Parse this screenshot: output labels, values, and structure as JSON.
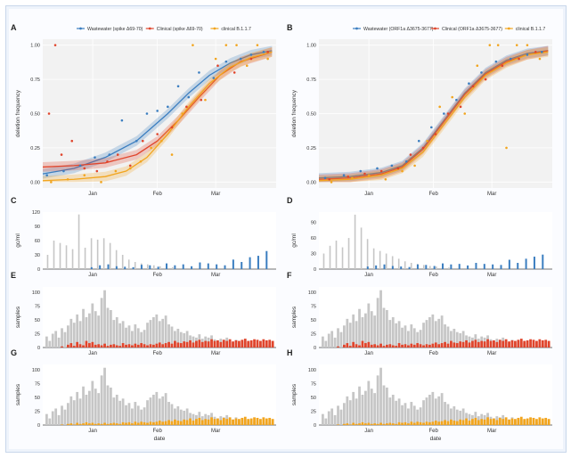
{
  "colors": {
    "wastewater": "#3b7ec0",
    "clinical": "#e0452c",
    "b117": "#f2a51e",
    "gray_bar": "#c6c6c6",
    "panel_bg": "#f2f2f2",
    "grid": "#ffffff"
  },
  "chart_data": [
    {
      "panel": "A",
      "type": "scatter",
      "legend": [
        "Wastewater (spike Δ69-70)",
        "Clinical (spike Δ69-70)",
        "clinical B.1.1.7"
      ],
      "ylabel": "deletion frequency",
      "yticks": [
        "0.00",
        "0.25",
        "0.50",
        "0.75",
        "1.00"
      ],
      "xticks": [
        "Jan",
        "Feb",
        "Mar"
      ],
      "xlim_days": [
        0,
        112
      ],
      "ylim": [
        0,
        1
      ],
      "fits": [
        {
          "series": "Wastewater",
          "x": [
            0,
            15,
            30,
            45,
            60,
            70,
            80,
            90,
            100,
            110
          ],
          "y": [
            0.06,
            0.1,
            0.18,
            0.3,
            0.5,
            0.65,
            0.78,
            0.87,
            0.93,
            0.96
          ]
        },
        {
          "series": "Clinical",
          "x": [
            0,
            15,
            30,
            45,
            55,
            65,
            75,
            85,
            95,
            110
          ],
          "y": [
            0.11,
            0.12,
            0.14,
            0.2,
            0.3,
            0.45,
            0.62,
            0.78,
            0.88,
            0.95
          ]
        },
        {
          "series": "clinical B.1.1.7",
          "x": [
            0,
            15,
            30,
            40,
            50,
            60,
            70,
            80,
            90,
            100,
            110
          ],
          "y": [
            0.01,
            0.02,
            0.04,
            0.08,
            0.18,
            0.35,
            0.55,
            0.72,
            0.84,
            0.91,
            0.95
          ]
        }
      ],
      "points": [
        {
          "series": "Wastewater",
          "x": [
            2,
            10,
            18,
            25,
            32,
            38,
            45,
            50,
            55,
            60,
            65,
            70,
            75,
            82,
            88,
            95,
            100,
            106
          ],
          "y": [
            0.05,
            0.08,
            0.12,
            0.18,
            0.2,
            0.45,
            0.3,
            0.5,
            0.52,
            0.55,
            0.7,
            0.62,
            0.8,
            0.76,
            0.88,
            0.9,
            0.93,
            0.95
          ]
        },
        {
          "series": "Clinical",
          "x": [
            3,
            6,
            9,
            14,
            20,
            26,
            31,
            36,
            42,
            48,
            55,
            62,
            69,
            76,
            84,
            92,
            100,
            108
          ],
          "y": [
            0.5,
            1.0,
            0.2,
            0.3,
            0.1,
            0.08,
            0.15,
            0.2,
            0.12,
            0.3,
            0.35,
            0.4,
            0.55,
            0.6,
            0.85,
            0.8,
            0.9,
            0.95
          ]
        },
        {
          "series": "clinical B.1.1.7",
          "x": [
            4,
            12,
            20,
            28,
            35,
            42,
            47,
            52,
            57,
            62,
            67,
            72,
            78,
            83,
            88,
            93,
            98,
            103,
            108
          ],
          "y": [
            0.0,
            0.02,
            0.05,
            0.0,
            0.08,
            0.1,
            0.15,
            0.25,
            0.3,
            0.2,
            0.5,
            1.0,
            0.6,
            0.9,
            1.0,
            1.0,
            0.85,
            1.0,
            0.9
          ]
        }
      ]
    },
    {
      "panel": "B",
      "type": "scatter",
      "legend": [
        "Wastewater (ORF1a Δ3675-3677)",
        "Clinical (ORF1a Δ3675-3677)",
        "clinical B.1.1.7"
      ],
      "ylabel": "deletion frequency",
      "yticks": [
        "0.00",
        "0.25",
        "0.50",
        "0.75",
        "1.00"
      ],
      "xticks": [
        "Jan",
        "Feb",
        "Mar"
      ],
      "xlim_days": [
        0,
        112
      ],
      "ylim": [
        0,
        1
      ],
      "fits": [
        {
          "series": "Wastewater",
          "x": [
            0,
            15,
            30,
            40,
            50,
            60,
            70,
            80,
            90,
            100,
            110
          ],
          "y": [
            0.03,
            0.04,
            0.07,
            0.12,
            0.25,
            0.45,
            0.65,
            0.8,
            0.89,
            0.94,
            0.96
          ]
        },
        {
          "series": "Clinical",
          "x": [
            0,
            15,
            30,
            40,
            50,
            60,
            70,
            80,
            90,
            100,
            110
          ],
          "y": [
            0.02,
            0.03,
            0.06,
            0.11,
            0.24,
            0.44,
            0.64,
            0.79,
            0.88,
            0.93,
            0.96
          ]
        },
        {
          "series": "clinical B.1.1.7",
          "x": [
            0,
            15,
            30,
            40,
            50,
            60,
            70,
            80,
            90,
            100,
            110
          ],
          "y": [
            0.01,
            0.02,
            0.05,
            0.1,
            0.22,
            0.42,
            0.62,
            0.78,
            0.87,
            0.93,
            0.95
          ]
        }
      ],
      "points": [
        {
          "series": "Wastewater",
          "x": [
            3,
            12,
            20,
            28,
            35,
            42,
            48,
            54,
            60,
            66,
            72,
            78,
            85,
            92,
            100,
            107
          ],
          "y": [
            0.03,
            0.05,
            0.08,
            0.1,
            0.12,
            0.15,
            0.3,
            0.4,
            0.5,
            0.6,
            0.72,
            0.8,
            0.88,
            0.9,
            0.93,
            0.95
          ]
        },
        {
          "series": "Clinical",
          "x": [
            5,
            14,
            22,
            30,
            38,
            44,
            50,
            56,
            62,
            68,
            74,
            80,
            88,
            96,
            104
          ],
          "y": [
            0.02,
            0.04,
            0.06,
            0.08,
            0.1,
            0.2,
            0.25,
            0.35,
            0.5,
            0.55,
            0.7,
            0.75,
            0.85,
            0.9,
            0.95
          ]
        },
        {
          "series": "clinical B.1.1.7",
          "x": [
            6,
            16,
            24,
            32,
            40,
            46,
            52,
            58,
            64,
            70,
            76,
            82,
            86,
            90,
            95,
            100,
            106
          ],
          "y": [
            0.0,
            0.03,
            0.05,
            0.02,
            0.08,
            0.12,
            0.3,
            0.55,
            0.62,
            0.5,
            0.85,
            1.0,
            1.0,
            0.25,
            1.0,
            1.0,
            0.9
          ]
        }
      ]
    },
    {
      "panel": "C",
      "type": "bar",
      "ylabel": "gc/ml",
      "yticks": [
        "0",
        "30",
        "60",
        "90",
        "120"
      ],
      "ylim": [
        0,
        120
      ],
      "xticks": [
        "Jan",
        "Feb",
        "Mar"
      ],
      "gray_x": [
        2,
        5,
        8,
        11,
        14,
        17,
        20,
        23,
        26,
        29,
        32,
        35,
        38,
        41,
        44,
        47,
        50,
        53,
        56,
        59,
        62
      ],
      "gray_y": [
        30,
        60,
        55,
        50,
        42,
        115,
        45,
        65,
        62,
        65,
        55,
        40,
        30,
        20,
        15,
        12,
        10,
        8,
        6,
        5,
        4
      ],
      "blue_x": [
        23,
        27,
        31,
        35,
        39,
        43,
        47,
        51,
        55,
        59,
        63,
        67,
        71,
        75,
        79,
        83,
        87,
        91,
        95,
        99,
        103,
        107
      ],
      "blue_y": [
        4,
        8,
        10,
        6,
        5,
        4,
        9,
        8,
        5,
        12,
        8,
        10,
        6,
        14,
        12,
        10,
        8,
        20,
        15,
        25,
        28,
        38
      ]
    },
    {
      "panel": "D",
      "type": "bar",
      "ylabel": "gc/ml",
      "yticks": [
        "0",
        "30",
        "60",
        "90"
      ],
      "ylim": [
        0,
        110
      ],
      "xticks": [
        "Jan",
        "Feb",
        "Mar"
      ],
      "gray_x": [
        2,
        5,
        8,
        11,
        14,
        17,
        20,
        23,
        26,
        29,
        32,
        35,
        38,
        41,
        44,
        47,
        50,
        53,
        56,
        59,
        62
      ],
      "gray_y": [
        30,
        45,
        55,
        42,
        60,
        105,
        80,
        58,
        40,
        35,
        30,
        25,
        20,
        15,
        12,
        10,
        8,
        6,
        5,
        4,
        3
      ],
      "blue_x": [
        23,
        27,
        31,
        35,
        39,
        43,
        47,
        51,
        55,
        59,
        63,
        67,
        71,
        75,
        79,
        83,
        87,
        91,
        95,
        99,
        103,
        107
      ],
      "blue_y": [
        5,
        7,
        9,
        6,
        5,
        4,
        9,
        8,
        6,
        11,
        9,
        10,
        7,
        12,
        10,
        9,
        8,
        18,
        12,
        20,
        24,
        28
      ]
    },
    {
      "panel": "E",
      "type": "bar",
      "ylabel": "samples",
      "yticks": [
        "0",
        "25",
        "50",
        "75",
        "100"
      ],
      "ylim": [
        0,
        110
      ],
      "xticks": [
        "Jan",
        "Feb",
        "Mar"
      ],
      "accent": "clinical"
    },
    {
      "panel": "F",
      "type": "bar",
      "ylabel": "samples",
      "yticks": [
        "0",
        "25",
        "50",
        "75",
        "100"
      ],
      "ylim": [
        0,
        110
      ],
      "xticks": [
        "Jan",
        "Feb",
        "Mar"
      ],
      "accent": "clinical"
    },
    {
      "panel": "G",
      "type": "bar",
      "ylabel": "samples",
      "xlabel": "date",
      "yticks": [
        "0",
        "25",
        "50",
        "75",
        "100"
      ],
      "ylim": [
        0,
        110
      ],
      "xticks": [
        "Jan",
        "Feb",
        "Mar"
      ],
      "accent": "b117"
    },
    {
      "panel": "H",
      "type": "bar",
      "ylabel": "samples",
      "xlabel": "date",
      "yticks": [
        "0",
        "25",
        "50",
        "75",
        "100"
      ],
      "ylim": [
        0,
        110
      ],
      "xticks": [
        "Jan",
        "Feb",
        "Mar"
      ],
      "accent": "b117"
    }
  ],
  "sample_bars": {
    "gray": [
      20,
      12,
      25,
      30,
      18,
      35,
      28,
      40,
      52,
      45,
      60,
      48,
      70,
      55,
      62,
      80,
      66,
      58,
      90,
      104,
      72,
      68,
      50,
      55,
      44,
      48,
      36,
      40,
      30,
      42,
      35,
      28,
      32,
      45,
      50,
      55,
      60,
      48,
      52,
      58,
      42,
      38,
      30,
      34,
      28,
      26,
      30,
      22,
      20,
      18,
      24,
      16,
      20,
      18,
      22,
      15,
      12,
      16,
      14,
      18,
      12,
      10,
      14,
      8,
      12,
      10,
      8,
      10,
      6,
      8,
      5,
      6,
      4,
      5,
      3
    ],
    "red": [
      0,
      0,
      0,
      0,
      0,
      2,
      0,
      5,
      8,
      3,
      10,
      6,
      4,
      12,
      8,
      10,
      5,
      6,
      4,
      7,
      3,
      5,
      6,
      4,
      3,
      8,
      5,
      6,
      4,
      7,
      5,
      8,
      6,
      4,
      6,
      5,
      7,
      9,
      6,
      8,
      10,
      7,
      12,
      9,
      8,
      11,
      10,
      13,
      9,
      12,
      14,
      10,
      12,
      11,
      15,
      12,
      13,
      10,
      14,
      12,
      15,
      11,
      13,
      12,
      14,
      16,
      12,
      13,
      15,
      14,
      12,
      15,
      13,
      14,
      12
    ],
    "yellow": [
      0,
      0,
      0,
      0,
      0,
      1,
      0,
      2,
      3,
      1,
      4,
      2,
      3,
      5,
      3,
      4,
      2,
      3,
      2,
      4,
      2,
      3,
      4,
      3,
      2,
      5,
      4,
      5,
      3,
      6,
      4,
      6,
      5,
      4,
      6,
      5,
      6,
      8,
      6,
      7,
      9,
      7,
      10,
      8,
      7,
      10,
      9,
      12,
      8,
      11,
      13,
      9,
      11,
      10,
      14,
      11,
      12,
      9,
      13,
      11,
      14,
      10,
      12,
      11,
      13,
      15,
      11,
      12,
      14,
      13,
      11,
      14,
      12,
      13,
      11
    ]
  }
}
